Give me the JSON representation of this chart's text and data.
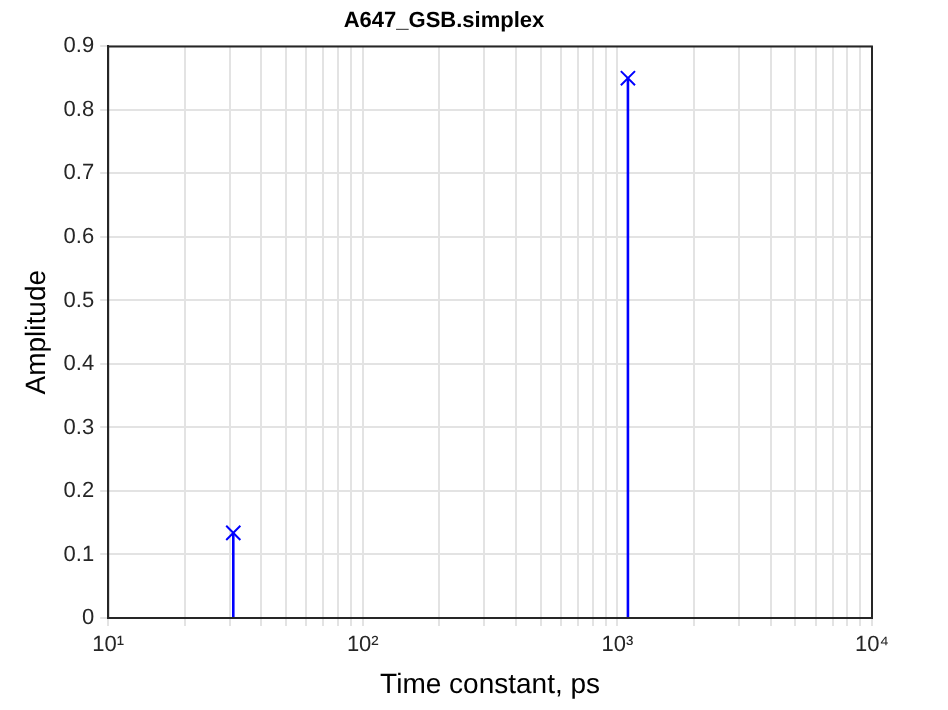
{
  "chart_data": {
    "type": "lollipop",
    "title": "A647_GSB.simplex",
    "xlabel": "Time constant, ps",
    "ylabel": "Amplitude",
    "x": [
      31,
      1100
    ],
    "series": [
      {
        "color": "#0000ff",
        "values": [
          0.134,
          0.85
        ]
      }
    ],
    "log": "x",
    "xlim": [
      10,
      10000
    ],
    "xticks": [
      {
        "value": 10,
        "label": "10¹"
      },
      {
        "value": 20,
        "label": null
      },
      {
        "value": 30,
        "label": null
      },
      {
        "value": 40,
        "label": null
      },
      {
        "value": 50,
        "label": null
      },
      {
        "value": 60,
        "label": null
      },
      {
        "value": 70,
        "label": null
      },
      {
        "value": 80,
        "label": null
      },
      {
        "value": 90,
        "label": null
      },
      {
        "value": 100,
        "label": "10²"
      },
      {
        "value": 200,
        "label": null
      },
      {
        "value": 300,
        "label": null
      },
      {
        "value": 400,
        "label": null
      },
      {
        "value": 500,
        "label": null
      },
      {
        "value": 600,
        "label": null
      },
      {
        "value": 700,
        "label": null
      },
      {
        "value": 800,
        "label": null
      },
      {
        "value": 900,
        "label": null
      },
      {
        "value": 1000,
        "label": "10³"
      },
      {
        "value": 2000,
        "label": null
      },
      {
        "value": 3000,
        "label": null
      },
      {
        "value": 4000,
        "label": null
      },
      {
        "value": 5000,
        "label": null
      },
      {
        "value": 6000,
        "label": null
      },
      {
        "value": 7000,
        "label": null
      },
      {
        "value": 8000,
        "label": null
      },
      {
        "value": 9000,
        "label": null
      },
      {
        "value": 10000,
        "label": "10⁴"
      }
    ],
    "ylim": [
      0,
      0.9
    ],
    "yticks": [
      0,
      0.1,
      0.2,
      0.3,
      0.4,
      0.5,
      0.6,
      0.7,
      0.8,
      0.9
    ],
    "grid": true,
    "marker": "cross"
  }
}
